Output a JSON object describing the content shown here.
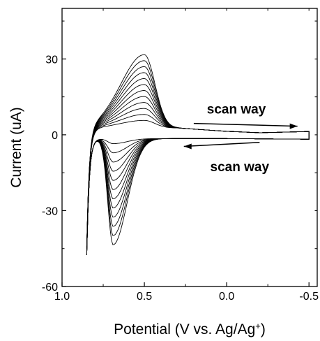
{
  "chart_data": {
    "type": "line",
    "title": "",
    "xlabel": "Potential (V vs. Ag/Ag",
    "xlabel_sup": "+",
    "xlabel_end": ")",
    "ylabel": "Current (uA)",
    "xlim": [
      1.0,
      -0.55
    ],
    "ylim": [
      -60,
      50
    ],
    "x_reversed": true,
    "xticks": [
      1.0,
      0.5,
      0.0,
      -0.5
    ],
    "xtick_labels": [
      "1.0",
      "0.5",
      "0.0",
      "-0.5"
    ],
    "yticks": [
      -60,
      -30,
      0,
      30
    ],
    "ytick_labels": [
      "-60",
      "-30",
      "0",
      "30"
    ],
    "grid": false,
    "legend": "none",
    "line_color": "#000000",
    "n_cycles": 12,
    "anodic_peak": {
      "x": 0.5,
      "y_min": 3,
      "y_max": 29
    },
    "cathodic_peak": {
      "x": 0.69,
      "y_min": -2,
      "y_max": -42
    },
    "x_range_scanned": [
      0.85,
      -0.5
    ],
    "annotations": [
      {
        "text": "scan way",
        "direction": "right",
        "x": 0.12,
        "y": 10
      },
      {
        "text": "scan way",
        "direction": "left",
        "x": 0.1,
        "y": -10
      }
    ]
  }
}
